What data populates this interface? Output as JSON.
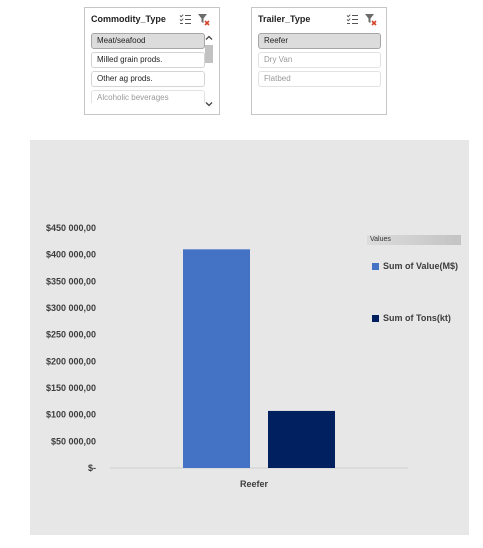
{
  "slicers": {
    "commodity": {
      "title": "Commodity_Type",
      "items": [
        {
          "label": "Meat/seafood",
          "state": "selected"
        },
        {
          "label": "Milled grain prods.",
          "state": "normal"
        },
        {
          "label": "Other ag prods.",
          "state": "normal"
        },
        {
          "label": "Alcoholic beverages",
          "state": "nodata"
        }
      ],
      "icons": {
        "multi_select": "multi-select-icon",
        "clear_filter": "clear-filter-icon",
        "scroll_up": "chevron-up-icon",
        "scroll_down": "chevron-down-icon"
      }
    },
    "trailer": {
      "title": "Trailer_Type",
      "items": [
        {
          "label": "Reefer",
          "state": "selected"
        },
        {
          "label": "Dry Van",
          "state": "nodata"
        },
        {
          "label": "Flatbed",
          "state": "nodata"
        }
      ],
      "icons": {
        "multi_select": "multi-select-icon",
        "clear_filter": "clear-filter-icon"
      }
    }
  },
  "chart_data": {
    "type": "bar",
    "categories": [
      "Reefer"
    ],
    "series": [
      {
        "name": "Sum of Value(M$)",
        "values": [
          410000
        ],
        "color": "#4472c4"
      },
      {
        "name": "Sum of Tons(kt)",
        "values": [
          107000
        ],
        "color": "#002060"
      }
    ],
    "ylim": [
      0,
      450000
    ],
    "yticks": [
      {
        "value": 0,
        "label": "$-"
      },
      {
        "value": 50000,
        "label": "$50 000,00"
      },
      {
        "value": 100000,
        "label": "$100 000,00"
      },
      {
        "value": 150000,
        "label": "$150 000,00"
      },
      {
        "value": 200000,
        "label": "$200 000,00"
      },
      {
        "value": 250000,
        "label": "$250 000,00"
      },
      {
        "value": 300000,
        "label": "$300 000,00"
      },
      {
        "value": 350000,
        "label": "$350 000,00"
      },
      {
        "value": 400000,
        "label": "$400 000,00"
      },
      {
        "value": 450000,
        "label": "$450 000,00"
      }
    ],
    "legend_title": "Values",
    "legend_position": "right",
    "grid": false,
    "background": "#e7e7e7"
  }
}
